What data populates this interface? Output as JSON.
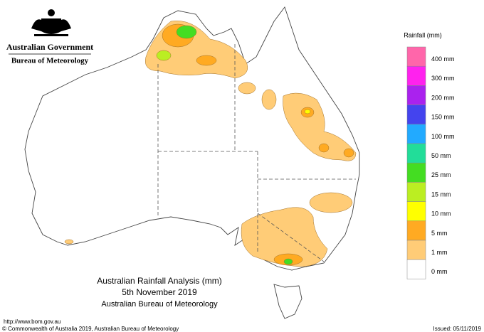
{
  "header": {
    "government": "Australian Government",
    "bureau": "Bureau of Meteorology"
  },
  "legend": {
    "title": "Rainfall (mm)",
    "items": [
      {
        "label": "400 mm",
        "color": "#ff66aa"
      },
      {
        "label": "300 mm",
        "color": "#ff22ee"
      },
      {
        "label": "200 mm",
        "color": "#aa22ee"
      },
      {
        "label": "150 mm",
        "color": "#4444ee"
      },
      {
        "label": "100 mm",
        "color": "#22aaff"
      },
      {
        "label": "50 mm",
        "color": "#22dd99"
      },
      {
        "label": "25 mm",
        "color": "#44dd22"
      },
      {
        "label": "15 mm",
        "color": "#bbee22"
      },
      {
        "label": "10 mm",
        "color": "#ffff00"
      },
      {
        "label": "5 mm",
        "color": "#ffaa22"
      },
      {
        "label": "1 mm",
        "color": "#ffcc77"
      },
      {
        "label": "0 mm",
        "color": "#ffffff"
      }
    ]
  },
  "caption": {
    "lines": [
      "Australian Rainfall Analysis (mm)",
      "5th November 2019",
      "Australian Bureau of Meteorology"
    ]
  },
  "footer": {
    "url": "http://www.bom.gov.au",
    "copyright": "© Commonwealth of Australia 2019, Australian Bureau of Meteorology",
    "issued": "Issued: 05/11/2019"
  }
}
